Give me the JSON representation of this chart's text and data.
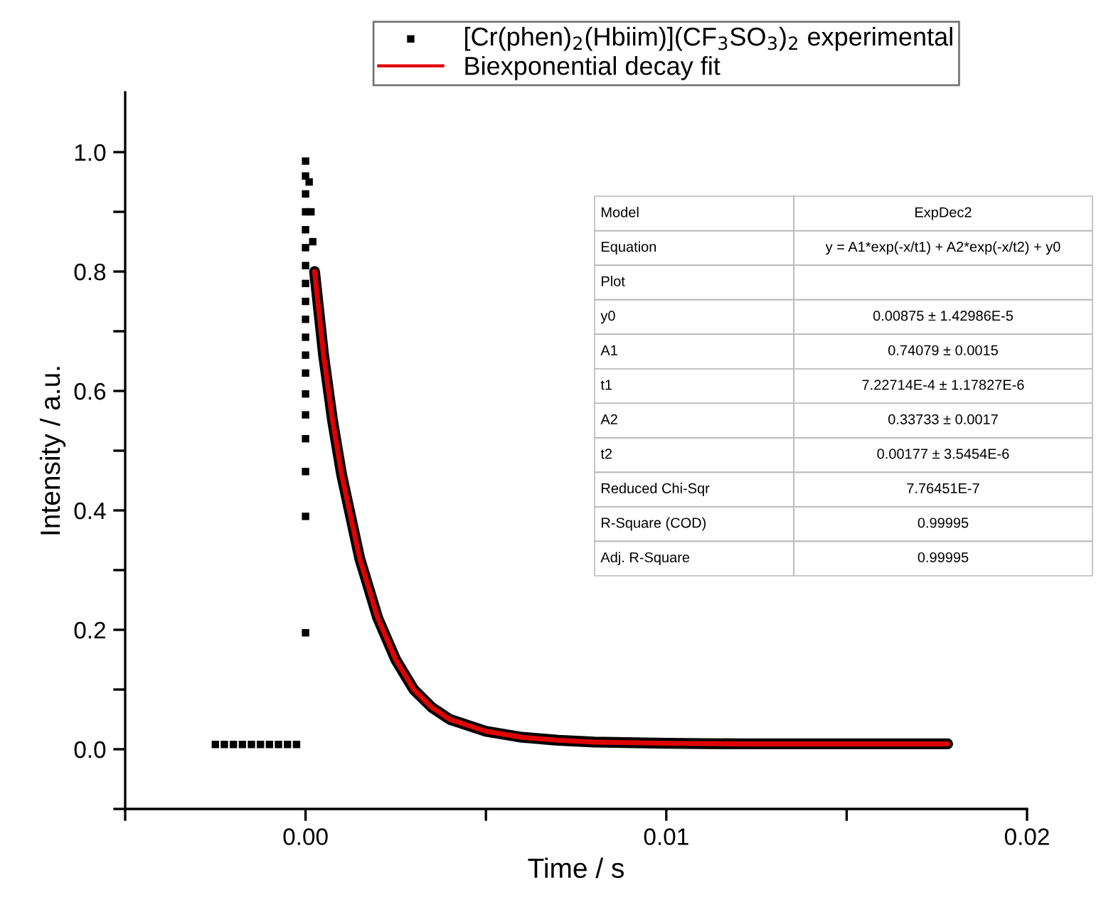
{
  "chart_data": [
    {
      "type": "scatter",
      "xlabel": "Time / s",
      "ylabel": "Intensity / a.u.",
      "xlim": [
        -0.005,
        0.02
      ],
      "xticks": [
        {
          "value": -0.005,
          "label": null
        },
        {
          "value": 0,
          "label": "0.00"
        },
        {
          "value": 0.005,
          "label": null
        },
        {
          "value": 0.01,
          "label": "0.01"
        },
        {
          "value": 0.015,
          "label": null
        },
        {
          "value": 0.02,
          "label": "0.02"
        }
      ],
      "ylim": [
        -0.1,
        1.1
      ],
      "yticks": [
        {
          "value": -0.1,
          "label": null
        },
        {
          "value": 0,
          "label": "0.0"
        },
        {
          "value": 0.1,
          "label": null
        },
        {
          "value": 0.2,
          "label": "0.2"
        },
        {
          "value": 0.3,
          "label": null
        },
        {
          "value": 0.4,
          "label": "0.4"
        },
        {
          "value": 0.5,
          "label": null
        },
        {
          "value": 0.6,
          "label": "0.6"
        },
        {
          "value": 0.7,
          "label": null
        },
        {
          "value": 0.8,
          "label": "0.8"
        },
        {
          "value": 0.9,
          "label": null
        },
        {
          "value": 1.0,
          "label": "1.0"
        }
      ],
      "grid": false,
      "legend": "top",
      "series": [
        {
          "name": "[Cr(phen)$_{2}$(Hbiim)](CF$_{3}$SO$_{3}$)$_{2}$ experimental",
          "marker": "square",
          "color": "#000000",
          "x": [
            -0.0025,
            -0.00225,
            -0.002,
            -0.00175,
            -0.0015,
            -0.00125,
            -0.001,
            -0.00075,
            -0.0005,
            -0.00025,
            0,
            0,
            0,
            0,
            0,
            0,
            0,
            0,
            0,
            0,
            0,
            0,
            0,
            0,
            0,
            0,
            0,
            0,
            0,
            0.0001,
            0.00015,
            0.0002
          ],
          "values": [
            0.008,
            0.008,
            0.008,
            0.008,
            0.008,
            0.008,
            0.008,
            0.008,
            0.008,
            0.008,
            0.195,
            0.39,
            0.465,
            0.52,
            0.56,
            0.595,
            0.63,
            0.66,
            0.69,
            0.72,
            0.75,
            0.78,
            0.81,
            0.84,
            0.87,
            0.9,
            0.93,
            0.96,
            0.985,
            0.95,
            0.9,
            0.85
          ]
        },
        {
          "name": "Biexponential decay fit",
          "type": "line",
          "color": "#e00000",
          "line_style": "solid",
          "x": [
            0.00025,
            0.0005,
            0.00075,
            0.001,
            0.00125,
            0.0015,
            0.00175,
            0.002,
            0.0025,
            0.003,
            0.0035,
            0.004,
            0.005,
            0.006,
            0.007,
            0.008,
            0.01,
            0.012,
            0.015,
            0.0178
          ],
          "values": [
            0.8,
            0.66,
            0.55,
            0.46,
            0.39,
            0.32,
            0.27,
            0.22,
            0.15,
            0.1,
            0.07,
            0.05,
            0.03,
            0.02,
            0.015,
            0.012,
            0.01,
            0.009,
            0.009,
            0.009
          ]
        }
      ]
    },
    {
      "type": "other",
      "categories": [
        "Model",
        "Equation",
        "Plot",
        "y0",
        "A1",
        "t1",
        "A2",
        "t2",
        "Reduced Chi-Sqr",
        "R-Square (COD)",
        "Adj. R-Square"
      ],
      "value_labels": [
        "ExpDec2",
        "y = A1*exp(-x/t1) + A2*exp(-x/t2) + y0",
        null,
        "0.00875 ± 1.42986E-5",
        "0.74079 ± 0.0015",
        "7.22714E-4 ± 1.17827E-6",
        "0.33733 ± 0.0017",
        "0.00177 ± 3.5454E-6",
        "7.76451E-7",
        "0.99995",
        "0.99995"
      ]
    }
  ]
}
